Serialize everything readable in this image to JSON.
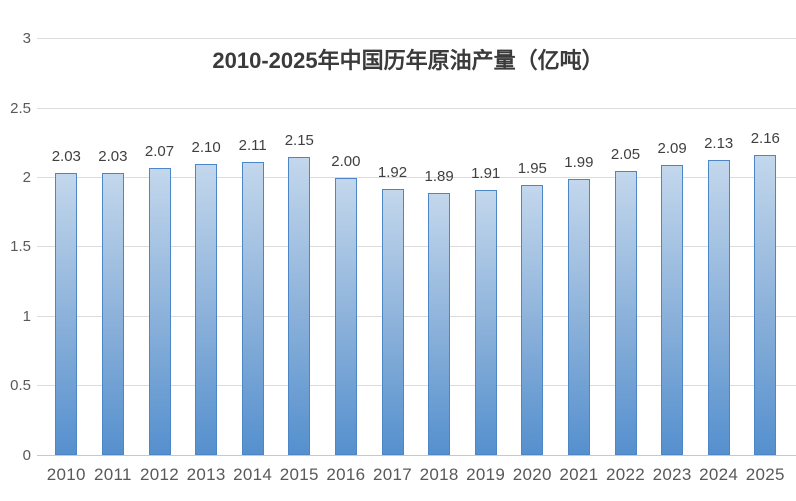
{
  "chart_data": {
    "type": "bar",
    "title": "2010-2025年中国历年原油产量（亿吨）",
    "categories": [
      "2010",
      "2011",
      "2012",
      "2013",
      "2014",
      "2015",
      "2016",
      "2017",
      "2018",
      "2019",
      "2020",
      "2021",
      "2022",
      "2023",
      "2024",
      "2025"
    ],
    "values": [
      2.03,
      2.03,
      2.07,
      2.1,
      2.11,
      2.15,
      2.0,
      1.92,
      1.89,
      1.91,
      1.95,
      1.99,
      2.05,
      2.09,
      2.13,
      2.16
    ],
    "data_labels": [
      "2.03",
      "2.03",
      "2.07",
      "2.10",
      "2.11",
      "2.15",
      "2.00",
      "1.92",
      "1.89",
      "1.91",
      "1.95",
      "1.99",
      "2.05",
      "2.09",
      "2.13",
      "2.16"
    ],
    "xlabel": "",
    "ylabel": "",
    "ylim": [
      0,
      3
    ],
    "yticks": [
      0,
      0.5,
      1,
      1.5,
      2,
      2.5,
      3
    ],
    "ytick_labels": [
      "0",
      "0.5",
      "1",
      "1.5",
      "2",
      "2.5",
      "3"
    ],
    "grid": true,
    "legend": false,
    "colors": {
      "background": "#ffffff",
      "bar_gradient_top": "#c3d7ec",
      "bar_gradient_mid": "#88afd9",
      "bar_gradient_bottom": "#5590ce",
      "bar_border": "#4d86c6",
      "gridline": "#dcdcdc",
      "axis_line": "#c8c8c8",
      "axis_label": "#595959",
      "data_label": "#404040",
      "title": "#3b3b3b"
    }
  }
}
